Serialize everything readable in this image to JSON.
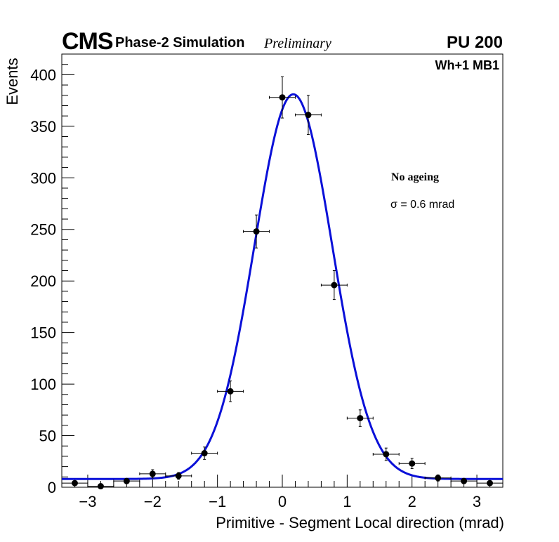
{
  "header": {
    "experiment": "CMS",
    "subtitle": "Phase-2 Simulation",
    "status": "Preliminary",
    "pileup": "PU 200"
  },
  "annotations": {
    "chamber": "Wh+1 MB1",
    "condition": "No ageing",
    "sigma_text": "σ = 0.6 mrad"
  },
  "chart_data": {
    "type": "scatter",
    "title": "",
    "xlabel": "Primitive - Segment Local direction (mrad)",
    "ylabel": "Events",
    "xlim": [
      -3.4,
      3.4
    ],
    "ylim": [
      0,
      420
    ],
    "xticks": [
      -3,
      -2,
      -1,
      0,
      1,
      2,
      3
    ],
    "xtick_labels": [
      "−3",
      "−2",
      "−1",
      "0",
      "1",
      "2",
      "3"
    ],
    "yticks": [
      0,
      50,
      100,
      150,
      200,
      250,
      300,
      350,
      400
    ],
    "ytick_labels": [
      "0",
      "50",
      "100",
      "150",
      "200",
      "250",
      "300",
      "350",
      "400"
    ],
    "bin_half_width": 0.2,
    "series": [
      {
        "name": "Data",
        "x": [
          -3.2,
          -2.8,
          -2.4,
          -2.0,
          -1.6,
          -1.2,
          -0.8,
          -0.4,
          0.0,
          0.4,
          0.8,
          1.2,
          1.6,
          2.0,
          2.4,
          2.8,
          3.2
        ],
        "y": [
          4,
          1,
          6,
          13,
          11,
          33,
          93,
          248,
          378,
          361,
          196,
          67,
          32,
          23,
          9,
          6,
          4
        ],
        "yerr": [
          2,
          1,
          2.5,
          4,
          3.3,
          6,
          10,
          16,
          20,
          19,
          14,
          8,
          6,
          5,
          3,
          2.4,
          2
        ]
      },
      {
        "name": "Gaussian fit",
        "type": "line",
        "mean": 0.17,
        "sigma": 0.6,
        "amplitude": 373,
        "constant": 8
      }
    ]
  },
  "colors": {
    "fit": "#0a10d8",
    "markers": "#000000",
    "frame": "#000000"
  }
}
